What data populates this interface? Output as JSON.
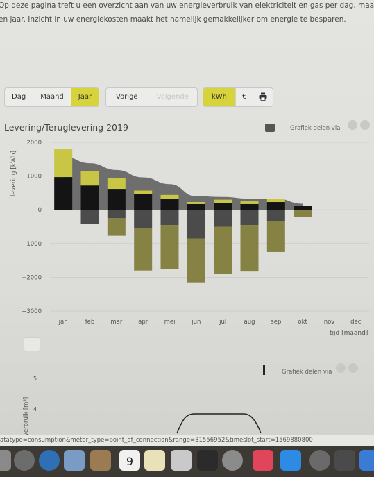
{
  "intro": {
    "line1": "Op deze pagina treft u een overzicht aan van uw energieverbruik van elektriciteit en gas per dag, maan",
    "line2": "en jaar. Inzicht in uw energiekosten maakt het namelijk gemakkelijker om energie te besparen."
  },
  "toolbar": {
    "period": [
      {
        "label": "Dag",
        "active": false
      },
      {
        "label": "Maand",
        "active": false
      },
      {
        "label": "Jaar",
        "active": true
      }
    ],
    "nav": [
      {
        "label": "Vorige",
        "disabled": false
      },
      {
        "label": "Volgende",
        "disabled": true
      }
    ],
    "unit": [
      {
        "label": "kWh",
        "active": true
      },
      {
        "label": "€",
        "active": false
      }
    ],
    "print_icon": "printer-icon"
  },
  "chart1": {
    "title": "Levering/Teruglevering 2019",
    "share_label": "Grafiek delen via"
  },
  "chart2": {
    "share_label": "Grafiek delen via",
    "ylabel": "verbruik [m³]",
    "yticks": [
      "5",
      "4"
    ]
  },
  "chart_data": {
    "type": "bar",
    "title": "Levering/Teruglevering 2019",
    "ylabel": "levering [kWh]",
    "xlabel": "tijd [maand]",
    "ylim": [
      -3000,
      2000
    ],
    "yticks": [
      2000,
      1000,
      0,
      -1000,
      -2000,
      -3000
    ],
    "ytick_labels": [
      "2000",
      "1000",
      "0",
      "−1000",
      "−2000",
      "−3000"
    ],
    "categories": [
      "jan",
      "feb",
      "mar",
      "apr",
      "mei",
      "jun",
      "jul",
      "aug",
      "sep",
      "okt",
      "nov",
      "dec"
    ],
    "colors": {
      "dark": "#141414",
      "yellow": "#c9c545",
      "olive": "#858243",
      "gray": "#4b4b4b",
      "area": "#5a5a5a"
    },
    "series": [
      {
        "key": "dark",
        "values": [
          970,
          720,
          620,
          460,
          330,
          170,
          200,
          170,
          230,
          120,
          null,
          null
        ]
      },
      {
        "key": "yellow",
        "values": [
          830,
          420,
          330,
          110,
          110,
          60,
          100,
          80,
          100,
          0,
          null,
          null
        ]
      },
      {
        "key": "gray",
        "values": [
          0,
          -420,
          -250,
          -550,
          -450,
          -850,
          -500,
          -450,
          -330,
          0,
          null,
          null
        ]
      },
      {
        "key": "olive",
        "values": [
          0,
          0,
          -520,
          -1250,
          -1300,
          -1300,
          -1400,
          -1380,
          -920,
          -220,
          null,
          null
        ]
      }
    ],
    "line_values": [
      1580,
      1380,
      1180,
      960,
      760,
      400,
      380,
      330,
      330,
      180,
      null,
      null
    ],
    "grid": true,
    "legend": "none"
  },
  "url_text": "atatype=consumption&meter_type=point_of_connection&range=31556952&timeslot_start=1569880800",
  "dock": {
    "calendar_day": "9"
  }
}
